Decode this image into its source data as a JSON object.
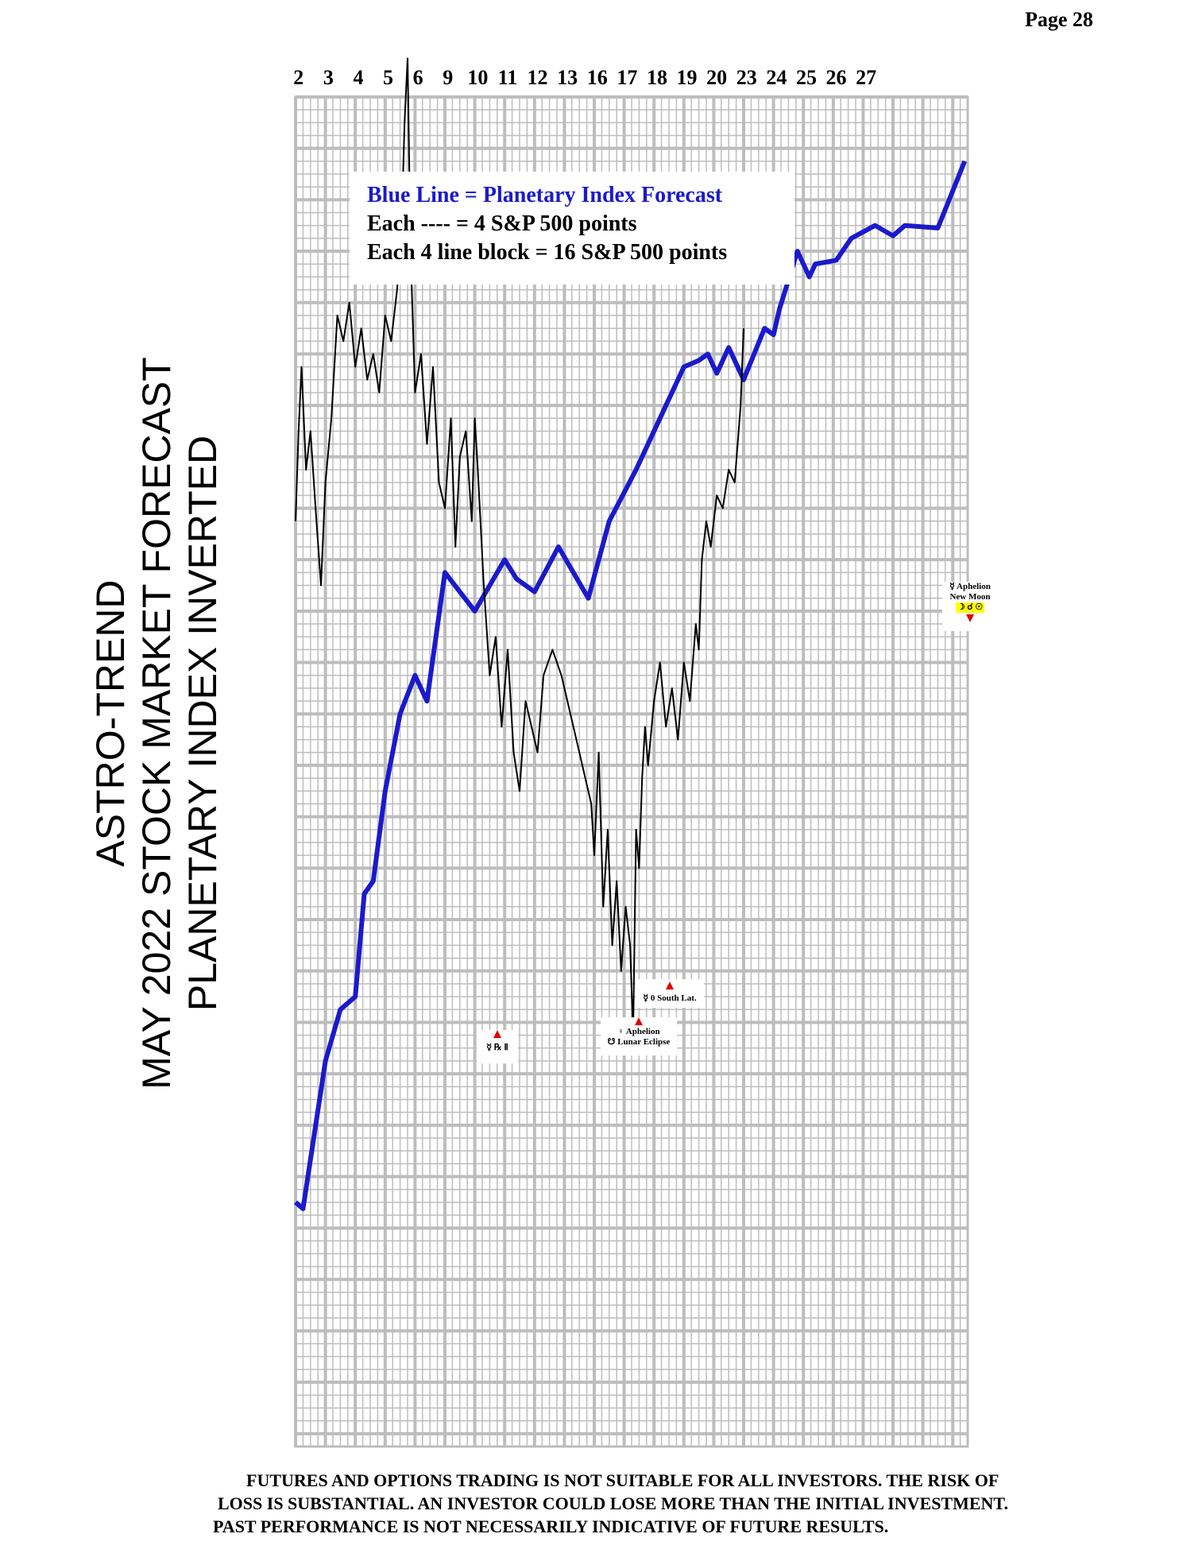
{
  "page_number": "Page  28",
  "side_title": {
    "line1": "ASTRO-TREND",
    "line2": "MAY 2022  STOCK MARKET FORECAST",
    "line3": "PLANETARY INDEX INVERTED"
  },
  "legend": {
    "line1": "Blue Line = Planetary Index Forecast",
    "line2": "Each ---- =   4 S&P 500 points",
    "line3": "Each 4 line block =  16  S&P 500 points"
  },
  "annotations": {
    "retro": "☿ ℞ Ⅱ",
    "south_lat": "☿ 0 South Lat.",
    "aphelion1_a": "♀ Aphelion",
    "aphelion1_b": "☋ Lunar Eclipse",
    "aphelion2_a": "☿ Aphelion",
    "aphelion2_b": "New Moon",
    "aphelion2_c": "☽ ☌ ☉"
  },
  "disclaimer": {
    "line1": "FUTURES AND OPTIONS TRADING IS NOT SUITABLE FOR ALL INVESTORS.  THE RISK OF",
    "line2": "LOSS IS SUBSTANTIAL.  AN INVESTOR COULD LOSE MORE THAN THE INITIAL INVESTMENT.",
    "line3": "PAST PERFORMANCE IS NOT NECESSARILY INDICATIVE OF FUTURE RESULTS."
  },
  "chart_data": {
    "type": "line",
    "x_labels": [
      "2",
      "3",
      "4",
      "5",
      "6",
      "9",
      "10",
      "11",
      "12",
      "13",
      "16",
      "17",
      "18",
      "19",
      "20",
      "23",
      "24",
      "25",
      "26",
      "27"
    ],
    "colors": {
      "forecast": "#1a1acc",
      "actual": "#000000",
      "grid": "#bdbdbd",
      "arrow": "#e00000"
    },
    "grid": true,
    "series": [
      {
        "name": "Blue Line = Planetary Index Forecast",
        "points": [
          [
            0,
            86
          ],
          [
            0.25,
            86.5
          ],
          [
            1,
            75
          ],
          [
            1.5,
            71
          ],
          [
            2,
            70
          ],
          [
            2.3,
            62
          ],
          [
            2.6,
            61
          ],
          [
            3,
            54
          ],
          [
            3.5,
            48
          ],
          [
            4,
            45
          ],
          [
            4.4,
            47
          ],
          [
            5,
            37
          ],
          [
            6,
            40
          ],
          [
            7,
            36
          ],
          [
            7.4,
            37.5
          ],
          [
            8,
            38.5
          ],
          [
            8.8,
            35
          ],
          [
            9.8,
            39
          ],
          [
            10.5,
            33
          ],
          [
            11.4,
            29
          ],
          [
            12.2,
            25
          ],
          [
            13,
            21
          ],
          [
            13.5,
            20.5
          ],
          [
            13.8,
            20
          ],
          [
            14.1,
            21.5
          ],
          [
            14.5,
            19.5
          ],
          [
            15,
            22
          ],
          [
            15.7,
            18
          ],
          [
            16,
            18.5
          ],
          [
            16.2,
            16.5
          ],
          [
            16.8,
            12
          ],
          [
            17.2,
            14
          ],
          [
            17.4,
            13
          ],
          [
            18.1,
            12.7
          ],
          [
            18.6,
            11
          ],
          [
            19.4,
            10
          ],
          [
            20,
            10.8
          ],
          [
            20.4,
            10
          ],
          [
            21.5,
            10.2
          ],
          [
            22.4,
            5
          ]
        ]
      },
      {
        "name": "",
        "points": [
          [
            0,
            33
          ],
          [
            0.1,
            26
          ],
          [
            0.2,
            21
          ],
          [
            0.35,
            29
          ],
          [
            0.5,
            26
          ],
          [
            0.7,
            33
          ],
          [
            0.85,
            38
          ],
          [
            1,
            30
          ],
          [
            1.2,
            25
          ],
          [
            1.4,
            17
          ],
          [
            1.6,
            19
          ],
          [
            1.8,
            16
          ],
          [
            2,
            21
          ],
          [
            2.2,
            18
          ],
          [
            2.4,
            22
          ],
          [
            2.6,
            20
          ],
          [
            2.8,
            23
          ],
          [
            3,
            17
          ],
          [
            3.2,
            19
          ],
          [
            3.4,
            15
          ],
          [
            3.55,
            10
          ],
          [
            3.65,
            2
          ],
          [
            3.75,
            -3
          ],
          [
            3.85,
            12
          ],
          [
            4,
            23
          ],
          [
            4.2,
            20
          ],
          [
            4.4,
            27
          ],
          [
            4.6,
            21
          ],
          [
            4.8,
            30
          ],
          [
            5,
            32
          ],
          [
            5.2,
            25
          ],
          [
            5.35,
            35
          ],
          [
            5.5,
            28
          ],
          [
            5.7,
            26
          ],
          [
            5.9,
            33
          ],
          [
            6,
            25
          ],
          [
            6.1,
            29
          ],
          [
            6.3,
            38
          ],
          [
            6.5,
            45
          ],
          [
            6.7,
            42
          ],
          [
            6.9,
            49
          ],
          [
            7.1,
            43
          ],
          [
            7.3,
            51
          ],
          [
            7.5,
            54
          ],
          [
            7.7,
            47
          ],
          [
            7.9,
            49
          ],
          [
            8.1,
            51
          ],
          [
            8.3,
            45
          ],
          [
            8.6,
            43
          ],
          [
            8.9,
            45
          ],
          [
            9.1,
            47
          ],
          [
            9.3,
            49
          ],
          [
            9.5,
            51
          ],
          [
            9.7,
            53
          ],
          [
            9.9,
            55
          ],
          [
            10,
            59
          ],
          [
            10.15,
            51
          ],
          [
            10.3,
            63
          ],
          [
            10.45,
            57
          ],
          [
            10.6,
            66
          ],
          [
            10.75,
            61
          ],
          [
            10.9,
            68
          ],
          [
            11.05,
            63
          ],
          [
            11.2,
            66
          ],
          [
            11.3,
            73
          ],
          [
            11.4,
            57
          ],
          [
            11.5,
            60
          ],
          [
            11.6,
            53
          ],
          [
            11.7,
            49
          ],
          [
            11.8,
            52
          ],
          [
            12,
            47
          ],
          [
            12.2,
            44
          ],
          [
            12.4,
            49
          ],
          [
            12.6,
            46
          ],
          [
            12.8,
            50
          ],
          [
            13,
            44
          ],
          [
            13.2,
            47
          ],
          [
            13.4,
            41
          ],
          [
            13.5,
            43
          ],
          [
            13.6,
            36
          ],
          [
            13.75,
            33
          ],
          [
            13.9,
            35
          ],
          [
            14.1,
            31
          ],
          [
            14.3,
            32
          ],
          [
            14.5,
            29
          ],
          [
            14.7,
            30
          ],
          [
            14.9,
            24
          ],
          [
            15,
            18
          ]
        ]
      }
    ]
  }
}
